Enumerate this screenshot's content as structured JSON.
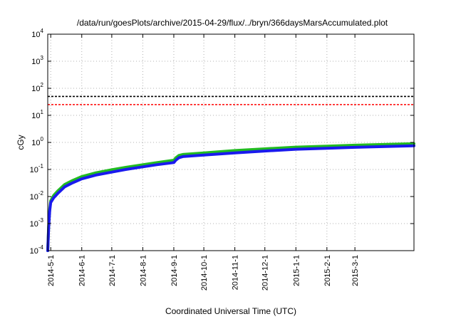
{
  "chart_data": {
    "type": "line",
    "title": "/data/run/goesPlots/archive/2015-04-29/flux/../bryn/366daysMarsAccumulated.plot",
    "xlabel": "Coordinated Universal Time (UTC)",
    "ylabel": "cGy",
    "yscale": "log",
    "ylim": [
      0.0001,
      10000
    ],
    "xlim": [
      "2014-04-28",
      "2015-04-29"
    ],
    "grid": true,
    "legend": "none",
    "x_ticks": [
      "2014-5-1",
      "2014-6-1",
      "2014-7-1",
      "2014-8-1",
      "2014-9-1",
      "2014-10-1",
      "2014-11-1",
      "2014-12-1",
      "2015-1-1",
      "2015-2-1",
      "2015-3-1"
    ],
    "y_ticks": [
      {
        "base": "10",
        "exp": "-4",
        "value": 0.0001
      },
      {
        "base": "10",
        "exp": "-3",
        "value": 0.001
      },
      {
        "base": "10",
        "exp": "-2",
        "value": 0.01
      },
      {
        "base": "10",
        "exp": "-1",
        "value": 0.1
      },
      {
        "base": "10",
        "exp": "0",
        "value": 1
      },
      {
        "base": "10",
        "exp": "1",
        "value": 10
      },
      {
        "base": "10",
        "exp": "2",
        "value": 100
      },
      {
        "base": "10",
        "exp": "3",
        "value": 1000
      },
      {
        "base": "10",
        "exp": "4",
        "value": 10000
      }
    ],
    "hlines": [
      {
        "y": 50,
        "color": "#000000",
        "style": "dashed"
      },
      {
        "y": 25,
        "color": "#ff0000",
        "style": "dashed"
      }
    ],
    "series": [
      {
        "color": "#22bb22",
        "x": [
          "2014-04-28",
          "2014-04-29",
          "2014-04-30",
          "2014-05-01",
          "2014-05-04",
          "2014-05-08",
          "2014-05-15",
          "2014-05-22",
          "2014-06-01",
          "2014-06-15",
          "2014-07-01",
          "2014-07-15",
          "2014-08-01",
          "2014-08-15",
          "2014-09-01",
          "2014-09-03",
          "2014-09-06",
          "2014-09-10",
          "2014-10-01",
          "2014-11-01",
          "2014-12-01",
          "2015-01-01",
          "2015-02-01",
          "2015-03-01",
          "2015-04-01",
          "2015-04-29"
        ],
        "y": [
          0.0001,
          0.001,
          0.0035,
          0.007,
          0.011,
          0.016,
          0.028,
          0.038,
          0.055,
          0.075,
          0.098,
          0.12,
          0.15,
          0.18,
          0.22,
          0.27,
          0.33,
          0.36,
          0.41,
          0.5,
          0.58,
          0.67,
          0.73,
          0.79,
          0.85,
          0.9
        ]
      },
      {
        "color": "#1a1aee",
        "x": [
          "2014-04-28",
          "2014-04-29",
          "2014-04-30",
          "2014-05-01",
          "2014-05-04",
          "2014-05-08",
          "2014-05-15",
          "2014-05-22",
          "2014-06-01",
          "2014-06-15",
          "2014-07-01",
          "2014-07-15",
          "2014-08-01",
          "2014-08-15",
          "2014-09-01",
          "2014-09-03",
          "2014-09-06",
          "2014-09-10",
          "2014-10-01",
          "2014-11-01",
          "2014-12-01",
          "2015-01-01",
          "2015-02-01",
          "2015-03-01",
          "2015-04-01",
          "2015-04-29"
        ],
        "y": [
          0.0001,
          0.0008,
          0.003,
          0.006,
          0.009,
          0.013,
          0.023,
          0.031,
          0.045,
          0.062,
          0.08,
          0.1,
          0.125,
          0.15,
          0.18,
          0.22,
          0.27,
          0.3,
          0.34,
          0.41,
          0.48,
          0.56,
          0.61,
          0.66,
          0.71,
          0.75
        ]
      }
    ]
  }
}
